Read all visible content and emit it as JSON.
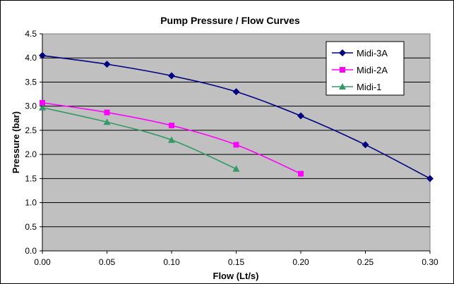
{
  "chart_data": {
    "type": "line",
    "title": "Pump Pressure / Flow Curves",
    "xlabel": "Flow (Lt/s)",
    "ylabel": "Pressure (bar)",
    "xlim": [
      0.0,
      0.3
    ],
    "ylim": [
      0.0,
      4.5
    ],
    "x_ticks": [
      "0.00",
      "0.05",
      "0.10",
      "0.15",
      "0.20",
      "0.25",
      "0.30"
    ],
    "y_ticks": [
      "0.0",
      "0.5",
      "1.0",
      "1.5",
      "2.0",
      "2.5",
      "3.0",
      "3.5",
      "4.0",
      "4.5"
    ],
    "x_tick_values": [
      0.0,
      0.05,
      0.1,
      0.15,
      0.2,
      0.25,
      0.3
    ],
    "y_tick_values": [
      0.0,
      0.5,
      1.0,
      1.5,
      2.0,
      2.5,
      3.0,
      3.5,
      4.0,
      4.5
    ],
    "grid": "horizontal",
    "plot_background": "#c0c0c0",
    "legend_position": "top-right",
    "series": [
      {
        "name": "Midi-3A",
        "color": "#000080",
        "marker": "diamond",
        "x": [
          0.0,
          0.05,
          0.1,
          0.15,
          0.2,
          0.25,
          0.3
        ],
        "y": [
          4.05,
          3.87,
          3.63,
          3.3,
          2.8,
          2.2,
          1.5
        ]
      },
      {
        "name": "Midi-2A",
        "color": "#ff00ff",
        "marker": "square",
        "x": [
          0.0,
          0.05,
          0.1,
          0.15,
          0.2
        ],
        "y": [
          3.07,
          2.87,
          2.6,
          2.2,
          1.6
        ]
      },
      {
        "name": "Midi-1",
        "color": "#339966",
        "marker": "triangle",
        "x": [
          0.0,
          0.05,
          0.1,
          0.15
        ],
        "y": [
          2.97,
          2.67,
          2.3,
          1.7
        ]
      }
    ]
  }
}
